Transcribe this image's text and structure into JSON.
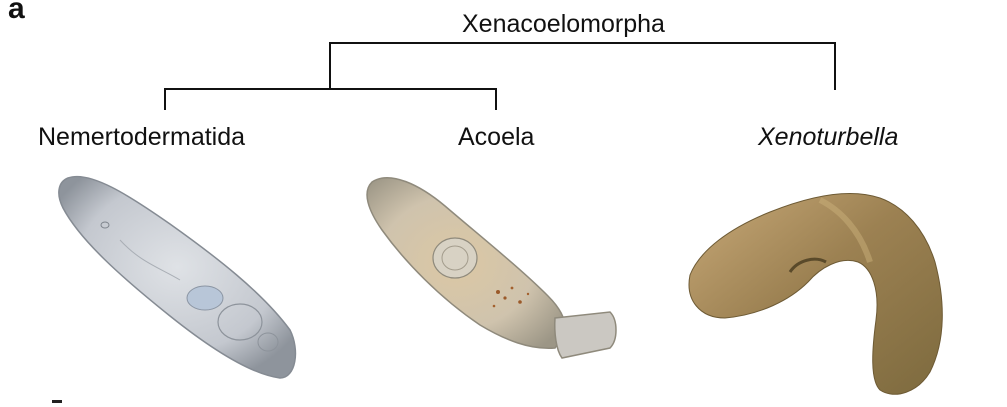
{
  "figure": {
    "panel_label": "a",
    "clade": "Xenacoelomorpha",
    "taxa": [
      {
        "name": "Nemertodermatida",
        "style": "regular"
      },
      {
        "name": "Acoela",
        "style": "regular"
      },
      {
        "name": "Xenoturbella",
        "style": "italic"
      }
    ]
  },
  "colors": {
    "line": "#111111",
    "nemertodermatid_body": "#c9ccd2",
    "acoel_body": "#cdc4b3",
    "xenoturbella_body": "#a8895a"
  }
}
